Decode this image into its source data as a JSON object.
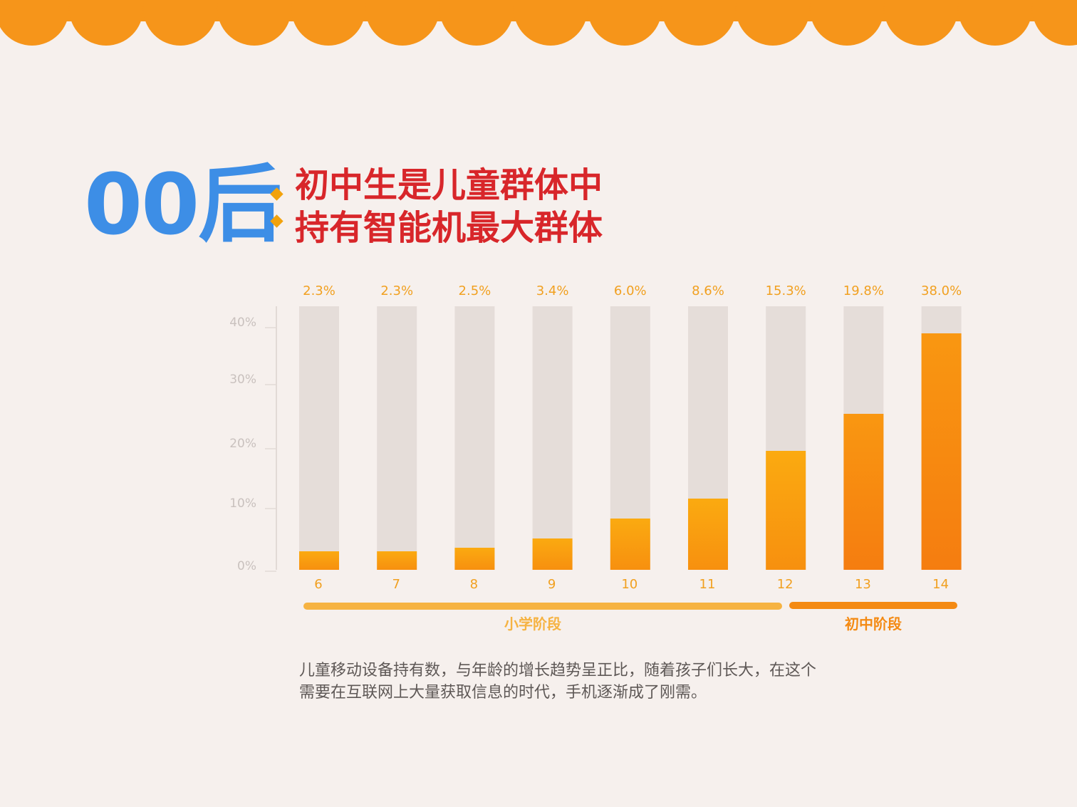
{
  "headline": {
    "big": "00后",
    "line1": "初中生是儿童群体中",
    "line2": "持有智能机最大群体"
  },
  "chart_data": {
    "type": "bar",
    "categories": [
      "6",
      "7",
      "8",
      "9",
      "10",
      "11",
      "12",
      "13",
      "14"
    ],
    "values": [
      2.3,
      2.3,
      2.5,
      3.4,
      6.0,
      8.6,
      15.3,
      19.8,
      38.0
    ],
    "value_labels": [
      "2.3%",
      "2.3%",
      "2.5%",
      "3.4%",
      "6.0%",
      "8.6%",
      "15.3%",
      "19.8%",
      "38.0%"
    ],
    "y_ticks": [
      "40%",
      "30%",
      "20%",
      "10%",
      "0%"
    ],
    "ylim": [
      0,
      40
    ],
    "groups": [
      {
        "label": "小学阶段",
        "from": "6",
        "to": "12",
        "color": "#f6b342"
      },
      {
        "label": "初中阶段",
        "from": "13",
        "to": "14",
        "color": "#f48a13"
      }
    ],
    "colors": {
      "bar": "#f9a10e",
      "bar_dark": "#f7870f",
      "track": "#e5ddd9"
    }
  },
  "description": {
    "line1": "儿童移动设备持有数，与年龄的增长趋势呈正比，随着孩子们长大，在这个",
    "line2": "需要在互联网上大量获取信息的时代，手机逐渐成了刚需。"
  }
}
